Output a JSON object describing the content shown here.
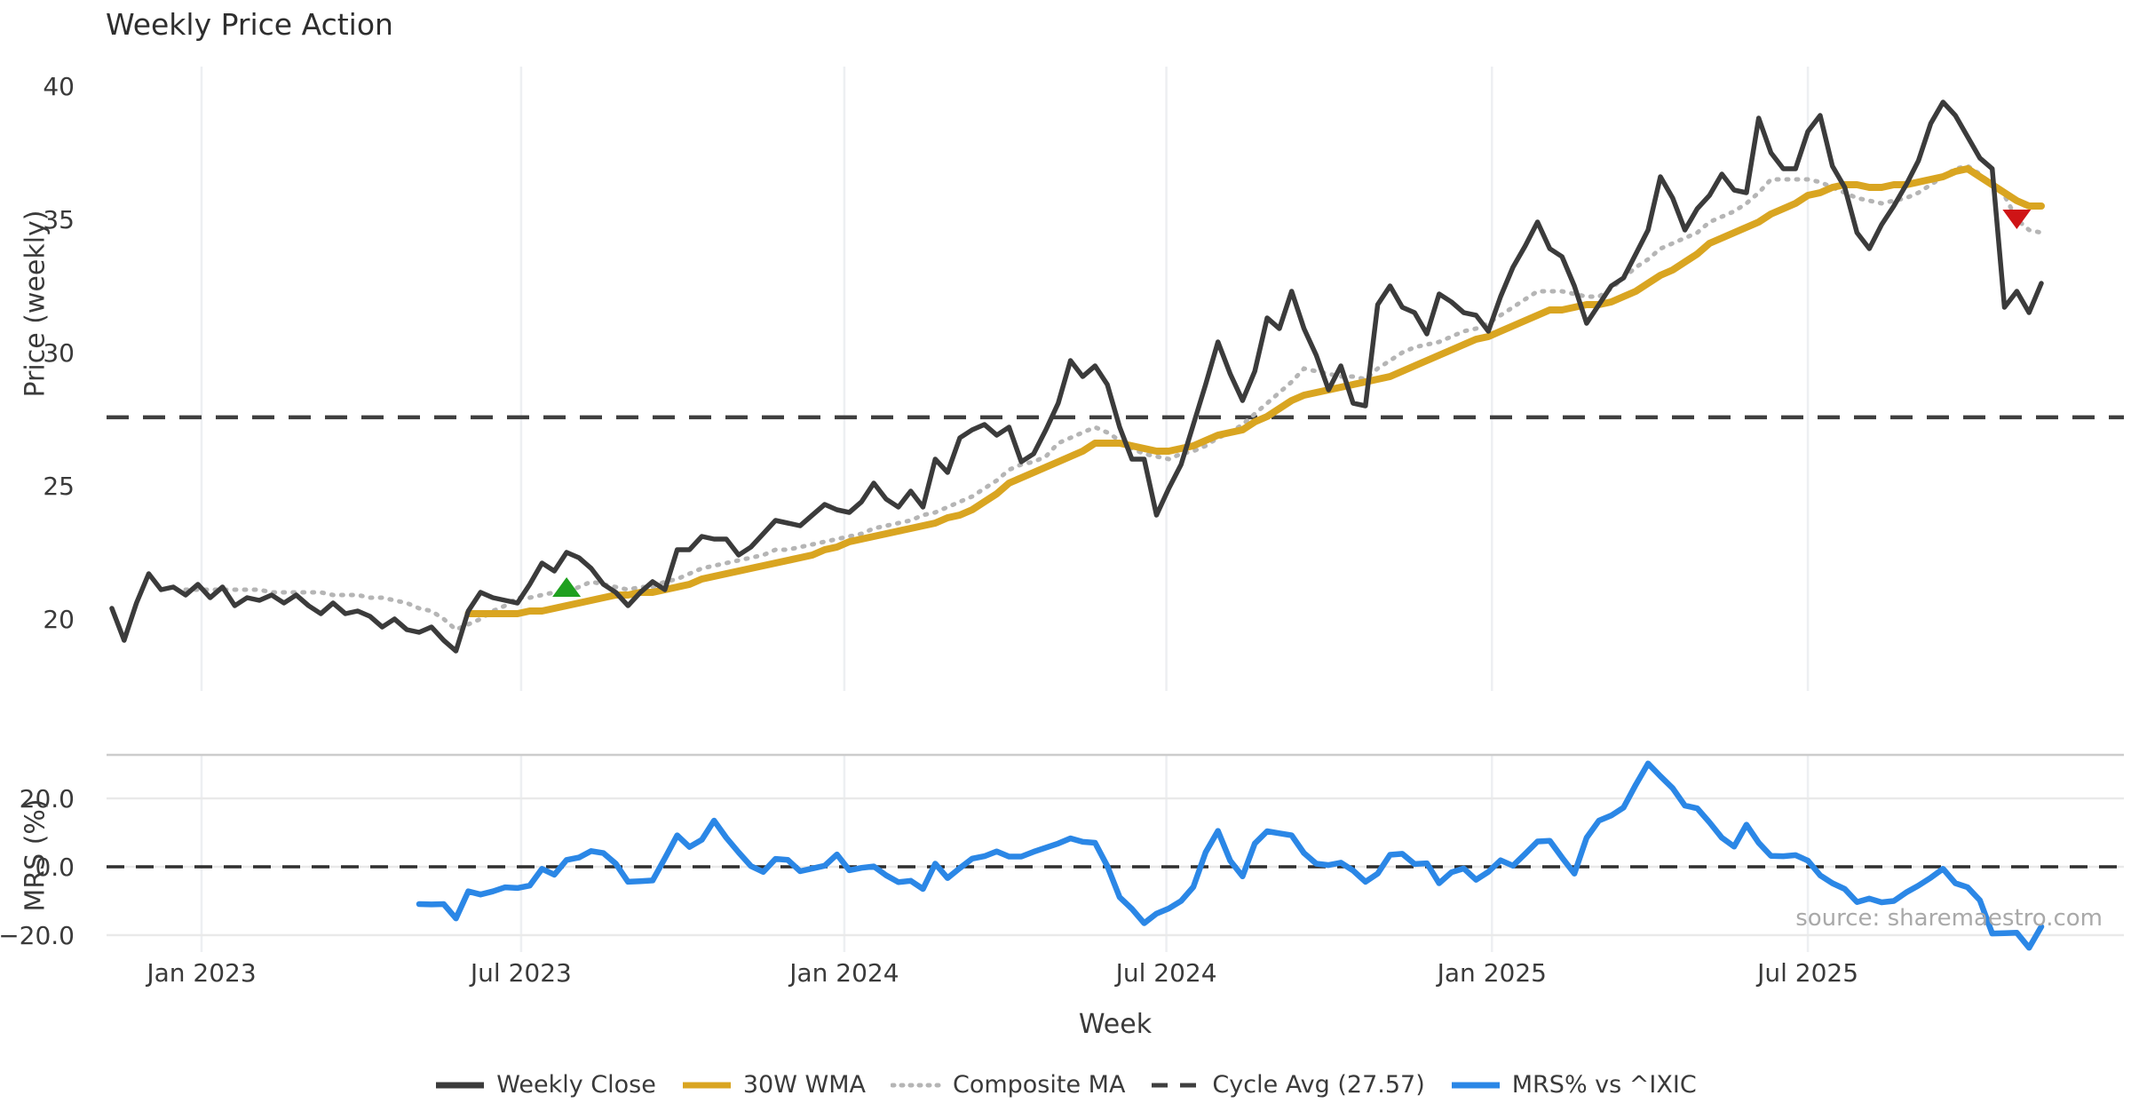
{
  "title": "Weekly Price Action",
  "source_text": "source: sharemaestro.com",
  "chart_data": {
    "type": "line",
    "title": "Weekly Price Action",
    "xlabel": "Week",
    "x_ticks": [
      {
        "label": "Jan 2023",
        "week": 7.3
      },
      {
        "label": "Jul 2023",
        "week": 33.3
      },
      {
        "label": "Jan 2024",
        "week": 59.6
      },
      {
        "label": "Jul 2024",
        "week": 85.8
      },
      {
        "label": "Jan 2025",
        "week": 112.3
      },
      {
        "label": "Jul 2025",
        "week": 138.0
      }
    ],
    "weeks_total": 158,
    "grid": {
      "vertical": true,
      "color": "#edeff2",
      "mrs_horizontal_color": "#e9e9e9",
      "separator_color": "#cccccc"
    },
    "panels": [
      {
        "name": "price",
        "ylabel": "Price (weekly)",
        "ylim": [
          17.4,
          40.7
        ],
        "yticks": [
          {
            "label": "40",
            "value": 40
          },
          {
            "label": "35",
            "value": 35
          },
          {
            "label": "30",
            "value": 30
          },
          {
            "label": "25",
            "value": 25
          },
          {
            "label": "20",
            "value": 20
          }
        ],
        "cycle_avg": {
          "label": "Cycle Avg (27.57)",
          "value": 27.57,
          "color": "#3f3f3f",
          "style": "dashed"
        },
        "series": [
          {
            "name": "Weekly Close",
            "color": "#3b3b3b",
            "style": "solid",
            "width": 5.5,
            "values": [
              20.4,
              19.2,
              20.6,
              21.7,
              21.1,
              21.2,
              20.9,
              21.3,
              20.8,
              21.2,
              20.5,
              20.8,
              20.7,
              20.9,
              20.6,
              20.9,
              20.5,
              20.2,
              20.6,
              20.2,
              20.3,
              20.1,
              19.7,
              20.0,
              19.6,
              19.5,
              19.7,
              19.2,
              18.8,
              20.3,
              21.0,
              20.8,
              20.7,
              20.6,
              21.3,
              22.1,
              21.8,
              22.5,
              22.3,
              21.9,
              21.3,
              21.0,
              20.5,
              21.0,
              21.4,
              21.1,
              22.6,
              22.6,
              23.1,
              23.0,
              23.0,
              22.4,
              22.7,
              23.2,
              23.7,
              23.6,
              23.5,
              23.9,
              24.3,
              24.1,
              24.0,
              24.4,
              25.1,
              24.5,
              24.2,
              24.8,
              24.2,
              26.0,
              25.5,
              26.8,
              27.1,
              27.3,
              26.9,
              27.2,
              25.9,
              26.2,
              27.1,
              28.1,
              29.7,
              29.1,
              29.5,
              28.8,
              27.2,
              26.0,
              26.0,
              23.9,
              24.9,
              25.8,
              27.3,
              28.8,
              30.4,
              29.2,
              28.2,
              29.3,
              31.3,
              30.9,
              32.3,
              30.9,
              29.9,
              28.6,
              29.5,
              28.1,
              28.0,
              31.8,
              32.5,
              31.7,
              31.5,
              30.7,
              32.2,
              31.9,
              31.5,
              31.4,
              30.8,
              32.1,
              33.2,
              34.0,
              34.9,
              33.9,
              33.6,
              32.5,
              31.1,
              31.8,
              32.5,
              32.8,
              33.7,
              34.6,
              36.6,
              35.8,
              34.6,
              35.4,
              35.9,
              36.7,
              36.1,
              36.0,
              38.8,
              37.5,
              36.9,
              36.9,
              38.3,
              38.9,
              37.0,
              36.2,
              34.5,
              33.9,
              34.8,
              35.5,
              36.3,
              37.2,
              38.6,
              39.4,
              38.9,
              38.1,
              37.3,
              36.9,
              31.7,
              32.3,
              31.5,
              32.6
            ]
          },
          {
            "name": "30W WMA",
            "color": "#d9a521",
            "style": "solid",
            "width": 8,
            "values": [
              null,
              null,
              null,
              null,
              null,
              null,
              null,
              null,
              null,
              null,
              null,
              null,
              null,
              null,
              null,
              null,
              null,
              null,
              null,
              null,
              null,
              null,
              null,
              null,
              null,
              null,
              null,
              null,
              null,
              20.2,
              20.2,
              20.2,
              20.2,
              20.2,
              20.3,
              20.3,
              20.4,
              20.5,
              20.6,
              20.7,
              20.8,
              20.9,
              20.9,
              21.0,
              21.0,
              21.1,
              21.2,
              21.3,
              21.5,
              21.6,
              21.7,
              21.8,
              21.9,
              22.0,
              22.1,
              22.2,
              22.3,
              22.4,
              22.6,
              22.7,
              22.9,
              23.0,
              23.1,
              23.2,
              23.3,
              23.4,
              23.5,
              23.6,
              23.8,
              23.9,
              24.1,
              24.4,
              24.7,
              25.1,
              25.3,
              25.5,
              25.7,
              25.9,
              26.1,
              26.3,
              26.6,
              26.6,
              26.6,
              26.5,
              26.4,
              26.3,
              26.3,
              26.4,
              26.5,
              26.7,
              26.9,
              27.0,
              27.1,
              27.4,
              27.6,
              27.9,
              28.2,
              28.4,
              28.5,
              28.6,
              28.7,
              28.8,
              28.9,
              29.0,
              29.1,
              29.3,
              29.5,
              29.7,
              29.9,
              30.1,
              30.3,
              30.5,
              30.6,
              30.8,
              31.0,
              31.2,
              31.4,
              31.6,
              31.6,
              31.7,
              31.8,
              31.8,
              31.9,
              32.1,
              32.3,
              32.6,
              32.9,
              33.1,
              33.4,
              33.7,
              34.1,
              34.3,
              34.5,
              34.7,
              34.9,
              35.2,
              35.4,
              35.6,
              35.9,
              36.0,
              36.2,
              36.3,
              36.3,
              36.2,
              36.2,
              36.3,
              36.3,
              36.4,
              36.5,
              36.6,
              36.8,
              36.9,
              36.6,
              36.3,
              36.0,
              35.7,
              35.5,
              35.5
            ]
          },
          {
            "name": "Composite MA",
            "color": "#b5b5b5",
            "style": "dotted",
            "width": 5,
            "values": [
              null,
              null,
              null,
              null,
              null,
              null,
              21.1,
              21.1,
              21.1,
              21.1,
              21.1,
              21.1,
              21.1,
              21.0,
              21.0,
              21.0,
              21.0,
              21.0,
              20.9,
              20.9,
              20.9,
              20.8,
              20.8,
              20.7,
              20.6,
              20.4,
              20.3,
              20.0,
              19.6,
              19.8,
              20.0,
              20.3,
              20.5,
              20.8,
              20.8,
              20.9,
              21.0,
              21.0,
              21.2,
              21.4,
              21.3,
              21.2,
              21.1,
              21.2,
              21.2,
              21.4,
              21.5,
              21.7,
              21.9,
              22.0,
              22.1,
              22.2,
              22.3,
              22.4,
              22.6,
              22.6,
              22.7,
              22.8,
              22.9,
              23.0,
              23.1,
              23.2,
              23.4,
              23.5,
              23.6,
              23.7,
              23.9,
              24.0,
              24.2,
              24.4,
              24.6,
              24.9,
              25.2,
              25.6,
              25.8,
              25.9,
              26.1,
              26.6,
              26.8,
              27.0,
              27.2,
              27.0,
              26.7,
              26.4,
              26.2,
              26.1,
              26.0,
              26.2,
              26.3,
              26.5,
              26.8,
              27.0,
              27.3,
              27.7,
              28.1,
              28.5,
              28.9,
              29.4,
              29.3,
              29.2,
              29.1,
              29.1,
              29.0,
              29.4,
              29.7,
              30.0,
              30.2,
              30.3,
              30.4,
              30.6,
              30.8,
              30.9,
              31.1,
              31.4,
              31.7,
              32.0,
              32.3,
              32.3,
              32.3,
              32.2,
              32.1,
              32.1,
              32.4,
              32.8,
              33.2,
              33.5,
              33.9,
              34.1,
              34.3,
              34.5,
              34.9,
              35.1,
              35.3,
              35.6,
              36.0,
              36.5,
              36.5,
              36.5,
              36.5,
              36.4,
              36.2,
              36.0,
              35.8,
              35.7,
              35.6,
              35.7,
              35.8,
              36.0,
              36.3,
              36.6,
              36.9,
              37.0,
              36.7,
              36.3,
              35.9,
              35.0,
              34.6,
              34.5
            ]
          }
        ],
        "markers": [
          {
            "type": "buy",
            "shape": "triangle-up",
            "week": 37,
            "value": 21.2,
            "color": "#1fa01f"
          },
          {
            "type": "sell",
            "shape": "triangle-down",
            "week": 155,
            "value": 35.0,
            "color": "#cf1416"
          }
        ]
      },
      {
        "name": "mrs",
        "ylabel": "MRS (%)",
        "ylim": [
          -26,
          33
        ],
        "yticks": [
          {
            "label": "20.0",
            "value": 20
          },
          {
            "label": "0.0",
            "value": 0
          },
          {
            "label": "−20.0",
            "value": -20
          }
        ],
        "zero_line": {
          "value": 0,
          "color": "#2f2f2f",
          "style": "dashed"
        },
        "series": [
          {
            "name": "MRS% vs ^IXIC",
            "color": "#2b87e6",
            "style": "solid",
            "width": 6.5,
            "values": [
              null,
              null,
              null,
              null,
              null,
              null,
              null,
              null,
              null,
              null,
              null,
              null,
              null,
              null,
              null,
              null,
              null,
              null,
              null,
              null,
              null,
              null,
              null,
              null,
              null,
              -10.9,
              -11.0,
              -10.9,
              -15.1,
              -7.2,
              -8.1,
              -7.2,
              -6.0,
              -6.2,
              -5.5,
              -0.6,
              -2.3,
              2.0,
              2.7,
              4.6,
              4.0,
              0.9,
              -4.4,
              -4.2,
              -4.0,
              2.5,
              9.2,
              5.8,
              7.9,
              13.5,
              8.5,
              4.2,
              0.2,
              -1.5,
              2.3,
              2.0,
              -1.3,
              -0.5,
              0.3,
              3.6,
              -1.0,
              -0.3,
              0.1,
              -2.5,
              -4.5,
              -4.1,
              -6.5,
              0.9,
              -3.3,
              -0.4,
              2.4,
              3.1,
              4.5,
              3.0,
              3.0,
              4.4,
              5.6,
              6.8,
              8.3,
              7.3,
              7.0,
              0.2,
              -8.9,
              -12.3,
              -16.5,
              -13.7,
              -12.2,
              -10.0,
              -5.9,
              4.2,
              10.5,
              1.8,
              -2.8,
              6.8,
              10.4,
              9.8,
              9.2,
              4.0,
              0.9,
              0.5,
              1.2,
              -1.1,
              -4.4,
              -2.0,
              3.5,
              3.8,
              0.8,
              1.0,
              -4.8,
              -1.6,
              -0.5,
              -3.8,
              -1.5,
              1.9,
              0.3,
              3.8,
              7.4,
              7.6,
              2.7,
              -2.0,
              8.5,
              13.5,
              15.0,
              17.3,
              24.0,
              30.2,
              26.5,
              23.0,
              17.9,
              17.1,
              13.0,
              8.5,
              5.9,
              12.3,
              7.0,
              3.2,
              3.1,
              3.4,
              1.8,
              -2.5,
              -4.8,
              -6.5,
              -10.3,
              -9.3,
              -10.4,
              -10.0,
              -7.5,
              -5.5,
              -3.2,
              -0.6,
              -4.8,
              -6.0,
              -9.8,
              -19.5,
              -19.4,
              -19.3,
              -23.7,
              -17.5
            ]
          }
        ]
      }
    ],
    "legend": [
      {
        "label": "Weekly Close",
        "color": "#3b3b3b",
        "style": "solid"
      },
      {
        "label": "30W WMA",
        "color": "#d9a521",
        "style": "solid"
      },
      {
        "label": "Composite MA",
        "color": "#b5b5b5",
        "style": "dotted"
      },
      {
        "label": "Cycle Avg (27.57)",
        "color": "#3f3f3f",
        "style": "dashed"
      },
      {
        "label": "MRS% vs ^IXIC",
        "color": "#2b87e6",
        "style": "solid"
      }
    ]
  }
}
